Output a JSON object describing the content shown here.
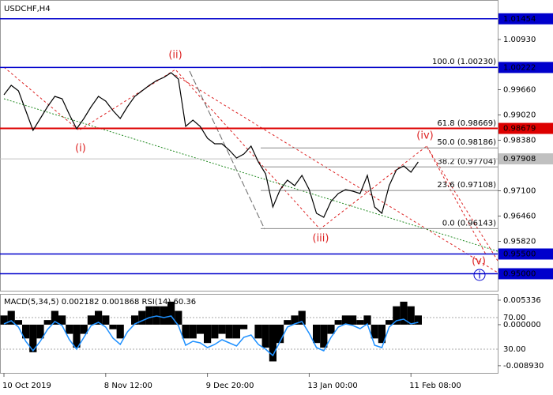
{
  "chart_data": [
    {
      "type": "line",
      "title": "USDCHF,H4",
      "categories": [
        "10 Oct 2019",
        null,
        null,
        null,
        null,
        null,
        null,
        null,
        null,
        null,
        null,
        null,
        null,
        null,
        "8 Nov 12:00",
        null,
        null,
        null,
        null,
        null,
        null,
        null,
        null,
        null,
        null,
        null,
        null,
        null,
        "9 Dec 20:00",
        null,
        null,
        null,
        null,
        null,
        null,
        null,
        null,
        null,
        null,
        null,
        null,
        null,
        "13 Jan 00:00",
        null,
        null,
        null,
        null,
        null,
        null,
        null,
        null,
        null,
        null,
        null,
        null,
        null,
        "11 Feb 08:00",
        null
      ],
      "values": [
        0.9953,
        0.9977,
        0.9963,
        0.9913,
        0.9863,
        0.9893,
        0.9923,
        0.9949,
        0.9943,
        0.9903,
        0.9867,
        0.9893,
        0.9923,
        0.9949,
        0.9937,
        0.9913,
        0.9893,
        0.9923,
        0.9949,
        0.9963,
        0.9977,
        0.9989,
        0.9997,
        1.0009,
        0.9993,
        0.9873,
        0.9889,
        0.9873,
        0.9843,
        0.9829,
        0.9829,
        0.9813,
        0.9793,
        0.9803,
        0.9823,
        0.9783,
        0.9753,
        0.9669,
        0.9713,
        0.9737,
        0.9723,
        0.9749,
        0.9713,
        0.9653,
        0.9643,
        0.9683,
        0.9703,
        0.9713,
        0.9709,
        0.9703,
        0.9749,
        0.9669,
        0.9653,
        0.9723,
        0.9763,
        0.9773,
        0.9757,
        0.9783
      ],
      "color": "#000000",
      "ylim": [
        0.9457,
        1.0193
      ],
      "yticks": [
        {
          "value": 1.0093,
          "label": "1.00930"
        },
        {
          "value": 0.9966,
          "label": "0.99660"
        },
        {
          "value": 0.9902,
          "label": "0.99020"
        },
        {
          "value": 0.9838,
          "label": "0.98380"
        },
        {
          "value": 0.971,
          "label": "0.97100"
        },
        {
          "value": 0.9646,
          "label": "0.96460"
        },
        {
          "value": 0.9582,
          "label": "0.95820"
        }
      ],
      "levels": [
        {
          "value": 1.01454,
          "label": "1.01454",
          "color": "#0000cc"
        },
        {
          "value": 1.00222,
          "label": "1.00222",
          "color": "#0000cc"
        },
        {
          "value": 0.98679,
          "label": "0.98679",
          "color": "#dd0000"
        },
        {
          "value": 0.955,
          "label": "0.95500",
          "color": "#0000cc"
        },
        {
          "value": 0.95,
          "label": "0.95000",
          "color": "#0000cc"
        }
      ],
      "current_price": {
        "value": 0.97908,
        "label": "0.97908",
        "color": "#c0c0c0"
      },
      "fibonacci": [
        {
          "value": 1.0023,
          "label": "100.0 (1.00230)"
        },
        {
          "value": 0.98669,
          "label": "61.8 (0.98669)"
        },
        {
          "value": 0.98186,
          "label": "50.0 (0.98186)"
        },
        {
          "value": 0.97704,
          "label": "38.2 (0.97704)"
        },
        {
          "value": 0.97108,
          "label": "23.6 (0.97108)"
        },
        {
          "value": 0.96143,
          "label": "0.0 (0.96143)"
        }
      ],
      "waves": [
        "(ii)",
        "(i)",
        "(iii)",
        "(iv)",
        "(v)",
        "i"
      ]
    },
    {
      "type": "bar",
      "title": "MACD(5,34,5) 0.002182 0.001868 RSI(14) 60.36",
      "series": [
        {
          "type": "bar",
          "color": "#000000",
          "values": [
            0.002,
            0.003,
            0.001,
            -0.003,
            -0.006,
            -0.003,
            0.001,
            0.003,
            0.002,
            -0.002,
            -0.005,
            -0.002,
            0.002,
            0.003,
            0.002,
            -0.001,
            -0.003,
            0.0,
            0.002,
            0.003,
            0.004,
            0.004,
            0.004,
            0.005,
            0.003,
            -0.003,
            -0.003,
            -0.002,
            -0.004,
            -0.003,
            -0.002,
            -0.003,
            -0.003,
            -0.001,
            0.0,
            -0.003,
            -0.005,
            -0.008,
            -0.004,
            0.001,
            0.002,
            0.003,
            0.0,
            -0.004,
            -0.005,
            -0.002,
            0.001,
            0.002,
            0.002,
            0.001,
            0.002,
            -0.003,
            -0.004,
            0.001,
            0.004,
            0.005,
            0.004,
            0.002
          ]
        },
        {
          "type": "line",
          "axis": "y2",
          "color": "#1e90ff",
          "values": [
            62,
            66,
            58,
            40,
            28,
            40,
            55,
            65,
            60,
            42,
            30,
            45,
            60,
            64,
            58,
            44,
            36,
            52,
            62,
            66,
            70,
            72,
            70,
            72,
            60,
            35,
            40,
            38,
            32,
            36,
            42,
            38,
            34,
            45,
            48,
            36,
            30,
            22,
            40,
            58,
            62,
            65,
            50,
            32,
            28,
            45,
            58,
            62,
            60,
            56,
            62,
            35,
            32,
            58,
            66,
            68,
            62,
            64
          ]
        }
      ],
      "ylim": [
        -0.0105,
        0.0067
      ],
      "yticks": [
        {
          "value": 0.005336,
          "label": "0.005336"
        },
        {
          "value": 0,
          "label": "0.000000"
        },
        {
          "value": -0.00893,
          "label": "-0.008930"
        }
      ],
      "y2lim": [
        0,
        100
      ],
      "y2ticks": [
        {
          "value": 70,
          "label": "70.00"
        },
        {
          "value": 30,
          "label": "30.00"
        }
      ]
    }
  ]
}
